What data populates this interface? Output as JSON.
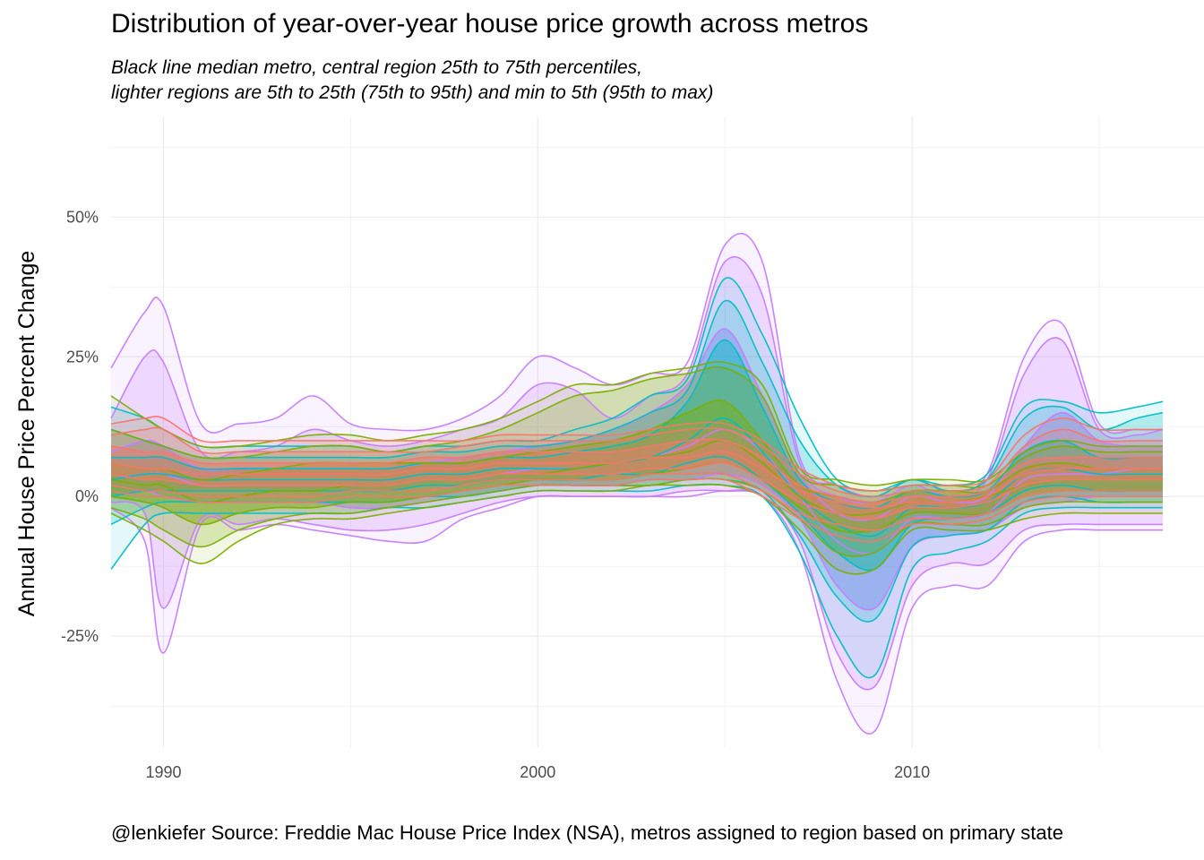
{
  "chart_data": {
    "type": "area",
    "title": "Distribution of year-over-year house price growth across metros",
    "subtitle_lines": [
      "Black line median metro, central region 25th to 75th percentiles,",
      "lighter regions are 5th to 25th (75th to 95th) and min to 5th (95th to max)"
    ],
    "caption": "@lenkiefer Source: Freddie Mac House Price Index (NSA), metros assigned to region based on primary state",
    "ylabel": "Annual House Price Percent Change",
    "xlabel": "",
    "xlim": [
      1988.6,
      2017.8
    ],
    "ylim": [
      -0.45,
      0.68
    ],
    "x_ticks": [
      1990,
      2000,
      2010
    ],
    "x_tick_labels": [
      "1990",
      "2000",
      "2010"
    ],
    "y_ticks": [
      -0.25,
      0,
      0.25,
      0.5
    ],
    "y_tick_labels": [
      "-25%",
      "0%",
      "25%",
      "50%"
    ],
    "grid": true,
    "legend": "none",
    "x": [
      1988.6,
      1989.5,
      1990.0,
      1991.0,
      1992.0,
      1993.0,
      1994.0,
      1995.0,
      1996.0,
      1997.0,
      1998.0,
      1999.0,
      2000.0,
      2001.0,
      2002.0,
      2003.0,
      2004.0,
      2005.0,
      2006.0,
      2007.0,
      2008.0,
      2009.0,
      2010.0,
      2011.0,
      2012.0,
      2013.0,
      2014.0,
      2015.0,
      2016.0,
      2016.7
    ],
    "series": [
      {
        "color": "#C77CFF",
        "min": [
          -0.02,
          -0.08,
          -0.28,
          -0.05,
          -0.06,
          -0.05,
          -0.06,
          -0.07,
          -0.08,
          -0.08,
          -0.04,
          -0.02,
          0.0,
          0.0,
          0.0,
          0.0,
          0.0,
          0.01,
          0.0,
          -0.1,
          -0.33,
          -0.42,
          -0.2,
          -0.16,
          -0.16,
          -0.08,
          -0.06,
          -0.06,
          -0.06,
          -0.06
        ],
        "p5": [
          -0.01,
          -0.03,
          -0.2,
          -0.04,
          -0.05,
          -0.04,
          -0.05,
          -0.06,
          -0.06,
          -0.05,
          -0.03,
          -0.01,
          0.0,
          0.0,
          0.0,
          0.0,
          0.01,
          0.01,
          0.0,
          -0.08,
          -0.28,
          -0.34,
          -0.16,
          -0.12,
          -0.12,
          -0.06,
          -0.05,
          -0.05,
          -0.05,
          -0.05
        ],
        "p25": [
          0.0,
          0.01,
          0.0,
          -0.01,
          -0.01,
          -0.01,
          -0.01,
          -0.02,
          -0.02,
          -0.01,
          0.0,
          0.01,
          0.02,
          0.02,
          0.02,
          0.03,
          0.03,
          0.04,
          0.02,
          -0.04,
          -0.16,
          -0.2,
          -0.09,
          -0.07,
          -0.06,
          -0.02,
          -0.01,
          0.0,
          0.0,
          0.0
        ],
        "median": [
          0.03,
          0.04,
          0.04,
          0.02,
          0.02,
          0.02,
          0.02,
          0.02,
          0.02,
          0.03,
          0.03,
          0.04,
          0.05,
          0.05,
          0.06,
          0.07,
          0.09,
          0.12,
          0.08,
          0.0,
          -0.08,
          -0.1,
          -0.04,
          -0.04,
          -0.03,
          0.03,
          0.04,
          0.04,
          0.05,
          0.05
        ],
        "p75": [
          0.08,
          0.1,
          0.09,
          0.05,
          0.05,
          0.05,
          0.05,
          0.05,
          0.05,
          0.06,
          0.07,
          0.08,
          0.09,
          0.1,
          0.12,
          0.15,
          0.2,
          0.3,
          0.18,
          0.04,
          -0.03,
          -0.04,
          0.0,
          -0.01,
          0.0,
          0.09,
          0.15,
          0.1,
          0.09,
          0.09
        ],
        "p95": [
          0.14,
          0.25,
          0.24,
          0.08,
          0.08,
          0.09,
          0.12,
          0.1,
          0.09,
          0.1,
          0.12,
          0.14,
          0.2,
          0.19,
          0.14,
          0.18,
          0.22,
          0.42,
          0.36,
          0.06,
          0.0,
          -0.01,
          0.02,
          0.0,
          0.03,
          0.22,
          0.28,
          0.12,
          0.11,
          0.12
        ],
        "max": [
          0.23,
          0.33,
          0.34,
          0.13,
          0.13,
          0.14,
          0.18,
          0.13,
          0.12,
          0.12,
          0.14,
          0.18,
          0.25,
          0.23,
          0.2,
          0.22,
          0.24,
          0.45,
          0.42,
          0.07,
          0.02,
          0.0,
          0.03,
          0.01,
          0.04,
          0.25,
          0.31,
          0.13,
          0.12,
          0.12
        ]
      },
      {
        "color": "#00BFC4",
        "min": [
          -0.13,
          -0.05,
          -0.03,
          -0.03,
          -0.03,
          -0.03,
          -0.03,
          -0.03,
          -0.02,
          -0.02,
          -0.01,
          0.0,
          0.01,
          0.01,
          0.01,
          0.01,
          0.02,
          0.02,
          0.0,
          -0.1,
          -0.25,
          -0.32,
          -0.13,
          -0.1,
          -0.08,
          -0.03,
          -0.02,
          -0.02,
          -0.02,
          -0.02
        ],
        "p5": [
          -0.05,
          -0.02,
          -0.01,
          -0.01,
          -0.01,
          -0.01,
          -0.01,
          -0.01,
          -0.01,
          0.0,
          0.0,
          0.01,
          0.02,
          0.02,
          0.02,
          0.02,
          0.03,
          0.03,
          0.01,
          -0.07,
          -0.18,
          -0.22,
          -0.09,
          -0.07,
          -0.06,
          -0.01,
          0.0,
          -0.01,
          -0.01,
          -0.01
        ],
        "p25": [
          0.0,
          0.01,
          0.01,
          0.01,
          0.01,
          0.01,
          0.01,
          0.01,
          0.01,
          0.02,
          0.02,
          0.03,
          0.03,
          0.03,
          0.04,
          0.04,
          0.06,
          0.07,
          0.03,
          -0.03,
          -0.1,
          -0.13,
          -0.05,
          -0.04,
          -0.03,
          0.01,
          0.02,
          0.01,
          0.01,
          0.01
        ],
        "median": [
          0.03,
          0.04,
          0.04,
          0.03,
          0.03,
          0.03,
          0.03,
          0.03,
          0.03,
          0.04,
          0.04,
          0.05,
          0.05,
          0.05,
          0.06,
          0.07,
          0.1,
          0.14,
          0.08,
          0.0,
          -0.05,
          -0.07,
          -0.02,
          -0.02,
          -0.01,
          0.04,
          0.05,
          0.04,
          0.04,
          0.04
        ],
        "p75": [
          0.07,
          0.07,
          0.07,
          0.05,
          0.05,
          0.05,
          0.05,
          0.05,
          0.05,
          0.06,
          0.06,
          0.07,
          0.07,
          0.08,
          0.09,
          0.11,
          0.17,
          0.28,
          0.16,
          0.03,
          -0.01,
          -0.02,
          0.01,
          0.0,
          0.01,
          0.08,
          0.1,
          0.07,
          0.07,
          0.07
        ],
        "p95": [
          0.12,
          0.1,
          0.09,
          0.07,
          0.07,
          0.07,
          0.07,
          0.07,
          0.07,
          0.08,
          0.08,
          0.09,
          0.09,
          0.1,
          0.12,
          0.15,
          0.19,
          0.35,
          0.24,
          0.1,
          0.02,
          0.0,
          0.03,
          0.01,
          0.03,
          0.14,
          0.16,
          0.12,
          0.14,
          0.15
        ],
        "max": [
          0.16,
          0.14,
          0.12,
          0.09,
          0.09,
          0.09,
          0.09,
          0.09,
          0.08,
          0.09,
          0.09,
          0.1,
          0.1,
          0.12,
          0.14,
          0.18,
          0.21,
          0.39,
          0.29,
          0.14,
          0.03,
          0.01,
          0.03,
          0.02,
          0.04,
          0.16,
          0.17,
          0.15,
          0.16,
          0.17
        ]
      },
      {
        "color": "#7CAE00",
        "min": [
          -0.03,
          -0.06,
          -0.08,
          -0.12,
          -0.08,
          -0.05,
          -0.04,
          -0.04,
          -0.03,
          -0.02,
          -0.01,
          0.0,
          0.01,
          0.01,
          0.01,
          0.02,
          0.02,
          0.02,
          0.0,
          -0.06,
          -0.13,
          -0.13,
          -0.06,
          -0.06,
          -0.06,
          -0.04,
          -0.03,
          -0.03,
          -0.03,
          -0.03
        ],
        "p5": [
          -0.02,
          -0.04,
          -0.06,
          -0.09,
          -0.06,
          -0.04,
          -0.03,
          -0.03,
          -0.02,
          -0.01,
          0.0,
          0.01,
          0.02,
          0.02,
          0.02,
          0.02,
          0.03,
          0.03,
          0.01,
          -0.04,
          -0.1,
          -0.1,
          -0.05,
          -0.05,
          -0.05,
          -0.02,
          -0.01,
          -0.01,
          -0.01,
          -0.01
        ],
        "p25": [
          0.0,
          -0.01,
          -0.02,
          -0.05,
          -0.03,
          -0.02,
          -0.02,
          -0.01,
          -0.01,
          0.0,
          0.01,
          0.02,
          0.03,
          0.03,
          0.03,
          0.04,
          0.05,
          0.06,
          0.03,
          -0.02,
          -0.06,
          -0.06,
          -0.03,
          -0.03,
          -0.03,
          0.0,
          0.01,
          0.01,
          0.01,
          0.01
        ],
        "median": [
          0.03,
          0.02,
          0.02,
          -0.01,
          0.0,
          0.01,
          0.01,
          0.02,
          0.02,
          0.03,
          0.03,
          0.04,
          0.04,
          0.05,
          0.06,
          0.07,
          0.08,
          0.1,
          0.06,
          0.0,
          -0.03,
          -0.03,
          -0.01,
          -0.01,
          0.0,
          0.02,
          0.03,
          0.03,
          0.03,
          0.03
        ],
        "p75": [
          0.06,
          0.05,
          0.05,
          0.03,
          0.04,
          0.05,
          0.06,
          0.06,
          0.06,
          0.06,
          0.06,
          0.07,
          0.08,
          0.09,
          0.1,
          0.12,
          0.15,
          0.17,
          0.1,
          0.02,
          0.0,
          -0.01,
          0.01,
          0.01,
          0.01,
          0.05,
          0.06,
          0.05,
          0.05,
          0.05
        ],
        "p95": [
          0.12,
          0.1,
          0.09,
          0.07,
          0.07,
          0.08,
          0.09,
          0.09,
          0.08,
          0.09,
          0.1,
          0.12,
          0.15,
          0.18,
          0.19,
          0.21,
          0.22,
          0.23,
          0.18,
          0.04,
          0.02,
          0.01,
          0.02,
          0.02,
          0.02,
          0.07,
          0.09,
          0.08,
          0.08,
          0.08
        ],
        "max": [
          0.18,
          0.14,
          0.12,
          0.09,
          0.09,
          0.1,
          0.11,
          0.11,
          0.1,
          0.11,
          0.12,
          0.14,
          0.17,
          0.2,
          0.2,
          0.22,
          0.23,
          0.24,
          0.2,
          0.05,
          0.03,
          0.02,
          0.03,
          0.03,
          0.03,
          0.08,
          0.1,
          0.09,
          0.09,
          0.09
        ]
      },
      {
        "color": "#F8766D",
        "min": [
          0.01,
          0.0,
          0.0,
          -0.01,
          -0.01,
          -0.01,
          -0.01,
          0.0,
          0.0,
          0.0,
          0.01,
          0.02,
          0.02,
          0.02,
          0.02,
          0.03,
          0.03,
          0.03,
          0.0,
          -0.04,
          -0.07,
          -0.08,
          -0.05,
          -0.05,
          -0.04,
          -0.01,
          0.0,
          0.0,
          0.0,
          0.0
        ],
        "p5": [
          0.02,
          0.01,
          0.01,
          0.0,
          0.0,
          0.0,
          0.0,
          0.01,
          0.01,
          0.01,
          0.02,
          0.03,
          0.03,
          0.03,
          0.03,
          0.04,
          0.04,
          0.04,
          0.01,
          -0.03,
          -0.05,
          -0.06,
          -0.04,
          -0.04,
          -0.03,
          0.0,
          0.01,
          0.01,
          0.01,
          0.01
        ],
        "p25": [
          0.04,
          0.03,
          0.03,
          0.02,
          0.02,
          0.02,
          0.02,
          0.02,
          0.02,
          0.03,
          0.03,
          0.04,
          0.04,
          0.04,
          0.04,
          0.05,
          0.05,
          0.06,
          0.03,
          -0.01,
          -0.03,
          -0.04,
          -0.02,
          -0.02,
          -0.01,
          0.02,
          0.03,
          0.03,
          0.03,
          0.03
        ],
        "median": [
          0.06,
          0.05,
          0.05,
          0.04,
          0.04,
          0.04,
          0.04,
          0.04,
          0.04,
          0.05,
          0.05,
          0.06,
          0.06,
          0.06,
          0.06,
          0.07,
          0.07,
          0.08,
          0.05,
          0.01,
          -0.01,
          -0.02,
          -0.01,
          -0.01,
          0.0,
          0.04,
          0.05,
          0.05,
          0.05,
          0.05
        ],
        "p75": [
          0.09,
          0.08,
          0.08,
          0.06,
          0.06,
          0.06,
          0.06,
          0.06,
          0.06,
          0.07,
          0.07,
          0.08,
          0.08,
          0.08,
          0.08,
          0.09,
          0.1,
          0.1,
          0.07,
          0.02,
          0.0,
          -0.01,
          0.0,
          0.0,
          0.01,
          0.06,
          0.07,
          0.07,
          0.07,
          0.07
        ],
        "p95": [
          0.11,
          0.12,
          0.12,
          0.08,
          0.08,
          0.08,
          0.08,
          0.08,
          0.08,
          0.08,
          0.09,
          0.1,
          0.1,
          0.1,
          0.1,
          0.11,
          0.12,
          0.12,
          0.09,
          0.04,
          0.01,
          0.0,
          0.01,
          0.01,
          0.02,
          0.09,
          0.12,
          0.1,
          0.1,
          0.1
        ],
        "max": [
          0.13,
          0.14,
          0.14,
          0.1,
          0.1,
          0.1,
          0.1,
          0.1,
          0.1,
          0.1,
          0.1,
          0.11,
          0.11,
          0.11,
          0.11,
          0.12,
          0.13,
          0.13,
          0.1,
          0.05,
          0.02,
          0.01,
          0.02,
          0.02,
          0.03,
          0.11,
          0.14,
          0.12,
          0.12,
          0.12
        ]
      }
    ]
  }
}
